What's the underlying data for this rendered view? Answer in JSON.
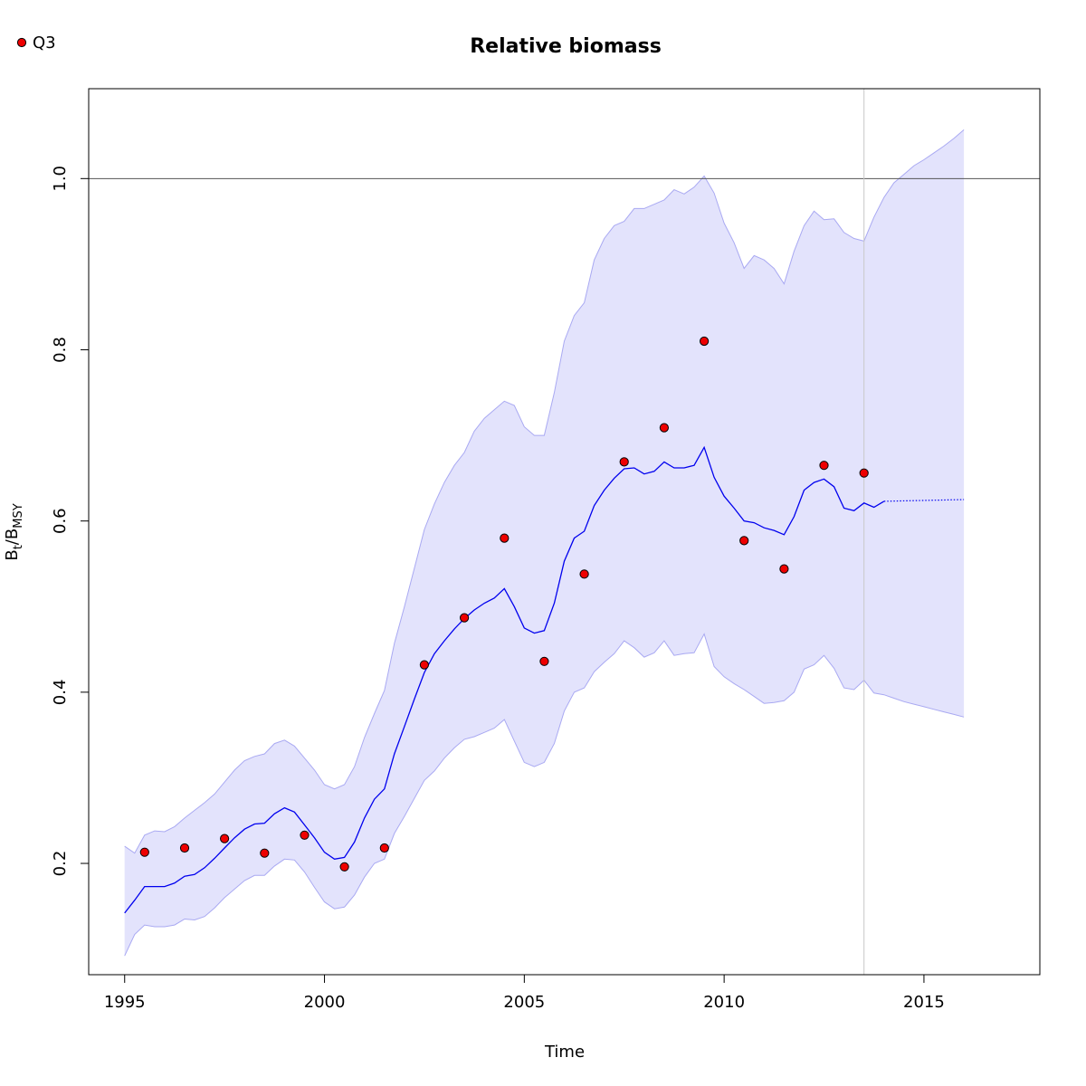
{
  "chart_data": {
    "type": "line",
    "title": "Relative biomass",
    "xlabel": "Time",
    "ylabel": {
      "main": "B",
      "sub1": "t",
      "slash": "/B",
      "sub2": "MSY"
    },
    "xlim": [
      1994.1,
      2017.9
    ],
    "ylim": [
      0.07,
      1.105
    ],
    "xticks": [
      1995,
      2000,
      2005,
      2010,
      2015
    ],
    "xtick_labels": [
      "1995",
      "2000",
      "2005",
      "2010",
      "2015"
    ],
    "yticks": [
      0.2,
      0.4,
      0.6,
      0.8,
      1.0
    ],
    "ytick_labels": [
      "0.2",
      "0.4",
      "0.6",
      "0.8",
      "1.0"
    ],
    "reference_line_y": 1.0,
    "reference_line_x": 2013.5,
    "grid": false,
    "legend": {
      "position": "top-left",
      "entries": [
        {
          "label": "Q3",
          "color": "#ff0000"
        }
      ]
    },
    "colors": {
      "estimate": "#0000ee",
      "band_fill": "#e3e3fc",
      "band_edge": "#a9a9f2",
      "points": "#ee0000",
      "ref_h": "#555555",
      "ref_v": "#c8c8c8"
    },
    "estimate": {
      "x": [
        1995.0,
        1995.25,
        1995.5,
        1995.75,
        1996.0,
        1996.25,
        1996.5,
        1996.75,
        1997.0,
        1997.25,
        1997.5,
        1997.75,
        1998.0,
        1998.25,
        1998.5,
        1998.75,
        1999.0,
        1999.25,
        1999.5,
        1999.75,
        2000.0,
        2000.25,
        2000.5,
        2000.75,
        2001.0,
        2001.25,
        2001.5,
        2001.75,
        2002.0,
        2002.25,
        2002.5,
        2002.75,
        2003.0,
        2003.25,
        2003.5,
        2003.75,
        2004.0,
        2004.25,
        2004.5,
        2004.75,
        2005.0,
        2005.25,
        2005.5,
        2005.75,
        2006.0,
        2006.25,
        2006.5,
        2006.75,
        2007.0,
        2007.25,
        2007.5,
        2007.75,
        2008.0,
        2008.25,
        2008.5,
        2008.75,
        2009.0,
        2009.25,
        2009.5,
        2009.75,
        2010.0,
        2010.25,
        2010.5,
        2010.75,
        2011.0,
        2011.25,
        2011.5,
        2011.75,
        2012.0,
        2012.25,
        2012.5,
        2012.75,
        2013.0,
        2013.25,
        2013.5,
        2013.75,
        2014.0
      ],
      "y": [
        0.142,
        0.157,
        0.173,
        0.173,
        0.173,
        0.177,
        0.185,
        0.187,
        0.195,
        0.206,
        0.218,
        0.23,
        0.24,
        0.246,
        0.247,
        0.258,
        0.265,
        0.26,
        0.245,
        0.23,
        0.213,
        0.205,
        0.207,
        0.225,
        0.253,
        0.275,
        0.287,
        0.328,
        0.36,
        0.392,
        0.423,
        0.445,
        0.46,
        0.474,
        0.486,
        0.496,
        0.504,
        0.51,
        0.521,
        0.5,
        0.475,
        0.469,
        0.472,
        0.504,
        0.553,
        0.58,
        0.588,
        0.618,
        0.636,
        0.65,
        0.661,
        0.662,
        0.655,
        0.658,
        0.669,
        0.662,
        0.662,
        0.665,
        0.686,
        0.651,
        0.629,
        0.615,
        0.6,
        0.598,
        0.592,
        0.589,
        0.584,
        0.605,
        0.636,
        0.645,
        0.649,
        0.64,
        0.615,
        0.612,
        0.621,
        0.616,
        0.623
      ]
    },
    "projection": {
      "x": [
        2014.0,
        2016.0
      ],
      "y": [
        0.623,
        0.625
      ]
    },
    "band": {
      "x": [
        1995.0,
        1995.25,
        1995.5,
        1995.75,
        1996.0,
        1996.25,
        1996.5,
        1996.75,
        1997.0,
        1997.25,
        1997.5,
        1997.75,
        1998.0,
        1998.25,
        1998.5,
        1998.75,
        1999.0,
        1999.25,
        1999.5,
        1999.75,
        2000.0,
        2000.25,
        2000.5,
        2000.75,
        2001.0,
        2001.25,
        2001.5,
        2001.75,
        2002.0,
        2002.25,
        2002.5,
        2002.75,
        2003.0,
        2003.25,
        2003.5,
        2003.75,
        2004.0,
        2004.25,
        2004.5,
        2004.75,
        2005.0,
        2005.25,
        2005.5,
        2005.75,
        2006.0,
        2006.25,
        2006.5,
        2006.75,
        2007.0,
        2007.25,
        2007.5,
        2007.75,
        2008.0,
        2008.25,
        2008.5,
        2008.75,
        2009.0,
        2009.25,
        2009.5,
        2009.75,
        2010.0,
        2010.25,
        2010.5,
        2010.75,
        2011.0,
        2011.25,
        2011.5,
        2011.75,
        2012.0,
        2012.25,
        2012.5,
        2012.75,
        2013.0,
        2013.25,
        2013.5,
        2013.75,
        2014.0,
        2014.25,
        2014.5,
        2014.75,
        2015.0,
        2015.25,
        2015.5,
        2015.75,
        2016.0
      ],
      "upper": [
        0.22,
        0.212,
        0.233,
        0.238,
        0.237,
        0.243,
        0.253,
        0.262,
        0.271,
        0.281,
        0.295,
        0.309,
        0.32,
        0.325,
        0.328,
        0.34,
        0.344,
        0.337,
        0.323,
        0.309,
        0.292,
        0.287,
        0.292,
        0.313,
        0.347,
        0.375,
        0.402,
        0.457,
        0.5,
        0.545,
        0.59,
        0.62,
        0.645,
        0.665,
        0.68,
        0.705,
        0.72,
        0.73,
        0.74,
        0.735,
        0.71,
        0.7,
        0.7,
        0.75,
        0.81,
        0.84,
        0.855,
        0.905,
        0.93,
        0.945,
        0.95,
        0.965,
        0.965,
        0.97,
        0.975,
        0.987,
        0.982,
        0.99,
        1.003,
        0.983,
        0.948,
        0.925,
        0.895,
        0.91,
        0.905,
        0.895,
        0.877,
        0.915,
        0.945,
        0.962,
        0.952,
        0.953,
        0.937,
        0.93,
        0.927,
        0.955,
        0.978,
        0.995,
        1.005,
        1.015,
        1.022,
        1.03,
        1.038,
        1.047,
        1.057
      ],
      "lower": [
        0.092,
        0.117,
        0.128,
        0.126,
        0.126,
        0.128,
        0.135,
        0.134,
        0.138,
        0.148,
        0.16,
        0.17,
        0.18,
        0.186,
        0.186,
        0.197,
        0.205,
        0.204,
        0.19,
        0.172,
        0.155,
        0.147,
        0.149,
        0.163,
        0.184,
        0.2,
        0.205,
        0.235,
        0.255,
        0.276,
        0.297,
        0.308,
        0.323,
        0.335,
        0.345,
        0.348,
        0.353,
        0.358,
        0.368,
        0.343,
        0.318,
        0.313,
        0.318,
        0.34,
        0.378,
        0.4,
        0.405,
        0.424,
        0.435,
        0.445,
        0.46,
        0.452,
        0.441,
        0.446,
        0.46,
        0.443,
        0.445,
        0.446,
        0.468,
        0.43,
        0.418,
        0.41,
        0.403,
        0.395,
        0.387,
        0.388,
        0.39,
        0.4,
        0.427,
        0.432,
        0.443,
        0.428,
        0.405,
        0.403,
        0.414,
        0.399,
        0.397,
        0.393,
        0.389,
        0.386,
        0.383,
        0.38,
        0.377,
        0.374,
        0.371
      ]
    },
    "series": [
      {
        "name": "Q3",
        "type": "scatter",
        "x": [
          1995.5,
          1996.5,
          1997.5,
          1998.5,
          1999.5,
          2000.5,
          2001.5,
          2002.5,
          2003.5,
          2004.5,
          2005.5,
          2006.5,
          2007.5,
          2008.5,
          2009.5,
          2010.5,
          2011.5,
          2012.5,
          2013.5
        ],
        "y": [
          0.213,
          0.218,
          0.229,
          0.212,
          0.233,
          0.196,
          0.218,
          0.432,
          0.487,
          0.58,
          0.436,
          0.538,
          0.669,
          0.709,
          0.81,
          0.577,
          0.544,
          0.665,
          0.656
        ]
      }
    ]
  }
}
